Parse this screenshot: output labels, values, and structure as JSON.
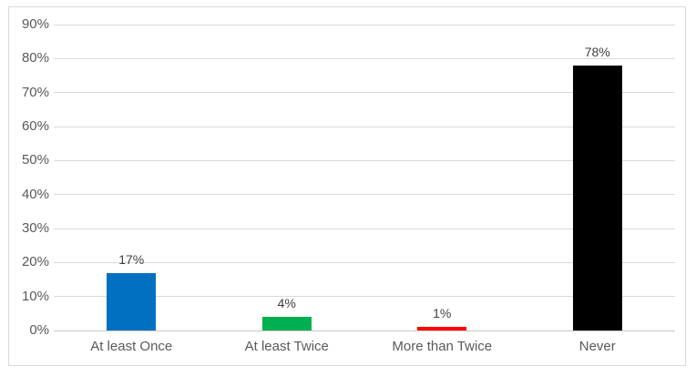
{
  "chart_data": {
    "type": "bar",
    "title": "",
    "xlabel": "",
    "ylabel": "",
    "categories": [
      "At least Once",
      "At least Twice",
      "More than Twice",
      "Never"
    ],
    "values": [
      17,
      4,
      1,
      78
    ],
    "data_labels": [
      "17%",
      "4%",
      "1%",
      "78%"
    ],
    "bar_colors": [
      "#0070C0",
      "#00B050",
      "#FF0000",
      "#000000"
    ],
    "ylim": [
      0,
      90
    ],
    "ytick_interval": 10,
    "ytick_labels": [
      "0%",
      "10%",
      "20%",
      "30%",
      "40%",
      "50%",
      "60%",
      "70%",
      "80%",
      "90%"
    ],
    "grid": true,
    "legend": "none"
  },
  "style": {
    "background_color": "#FFFFFF",
    "frame_border_color": "#D9D9D9",
    "gridline_color": "#D9D9D9",
    "axis_line_color": "#C6C6C6",
    "tick_text_color": "#595959",
    "category_text_color": "#595959",
    "data_label_color": "#404040"
  }
}
